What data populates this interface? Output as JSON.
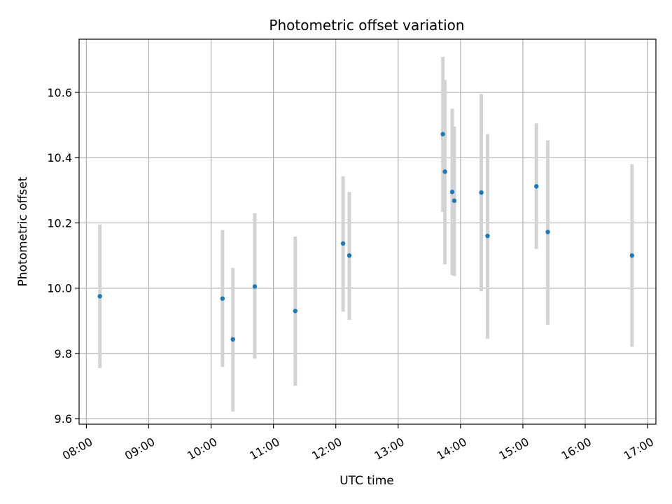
{
  "chart_data": {
    "type": "scatter",
    "title": "Photometric offset variation",
    "xlabel": "UTC time",
    "ylabel": "Photometric offset",
    "grid": true,
    "x_ticks": [
      "08:00",
      "09:00",
      "10:00",
      "11:00",
      "12:00",
      "13:00",
      "14:00",
      "15:00",
      "16:00",
      "17:00"
    ],
    "y_ticks": [
      "9.6",
      "9.8",
      "10.0",
      "10.2",
      "10.4",
      "10.6"
    ],
    "xlim": [
      "07:53",
      "17:08"
    ],
    "ylim": [
      9.583,
      10.763
    ],
    "colors": {
      "points": "#1f77b4",
      "errorbars": "#d3d3d3",
      "grid": "#b0b0b0"
    },
    "series": [
      {
        "points": [
          {
            "x": "08:13",
            "y": 9.975,
            "ymin": 9.755,
            "ymax": 10.195
          },
          {
            "x": "10:11",
            "y": 9.968,
            "ymin": 9.758,
            "ymax": 10.178
          },
          {
            "x": "10:21",
            "y": 9.843,
            "ymin": 9.622,
            "ymax": 10.062
          },
          {
            "x": "10:42",
            "y": 10.005,
            "ymin": 9.784,
            "ymax": 10.23
          },
          {
            "x": "11:21",
            "y": 9.93,
            "ymin": 9.701,
            "ymax": 10.158
          },
          {
            "x": "12:07",
            "y": 10.137,
            "ymin": 9.928,
            "ymax": 10.343
          },
          {
            "x": "12:13",
            "y": 10.1,
            "ymin": 9.903,
            "ymax": 10.295
          },
          {
            "x": "13:43",
            "y": 10.472,
            "ymin": 10.233,
            "ymax": 10.709
          },
          {
            "x": "13:45",
            "y": 10.357,
            "ymin": 10.073,
            "ymax": 10.638
          },
          {
            "x": "13:52",
            "y": 10.295,
            "ymin": 10.04,
            "ymax": 10.55
          },
          {
            "x": "13:54",
            "y": 10.268,
            "ymin": 10.037,
            "ymax": 10.495
          },
          {
            "x": "14:20",
            "y": 10.293,
            "ymin": 9.99,
            "ymax": 10.595
          },
          {
            "x": "14:26",
            "y": 10.16,
            "ymin": 9.845,
            "ymax": 10.472
          },
          {
            "x": "15:13",
            "y": 10.312,
            "ymin": 10.12,
            "ymax": 10.505
          },
          {
            "x": "15:24",
            "y": 10.172,
            "ymin": 9.888,
            "ymax": 10.453
          },
          {
            "x": "16:45",
            "y": 10.1,
            "ymin": 9.82,
            "ymax": 10.38
          }
        ]
      }
    ]
  }
}
